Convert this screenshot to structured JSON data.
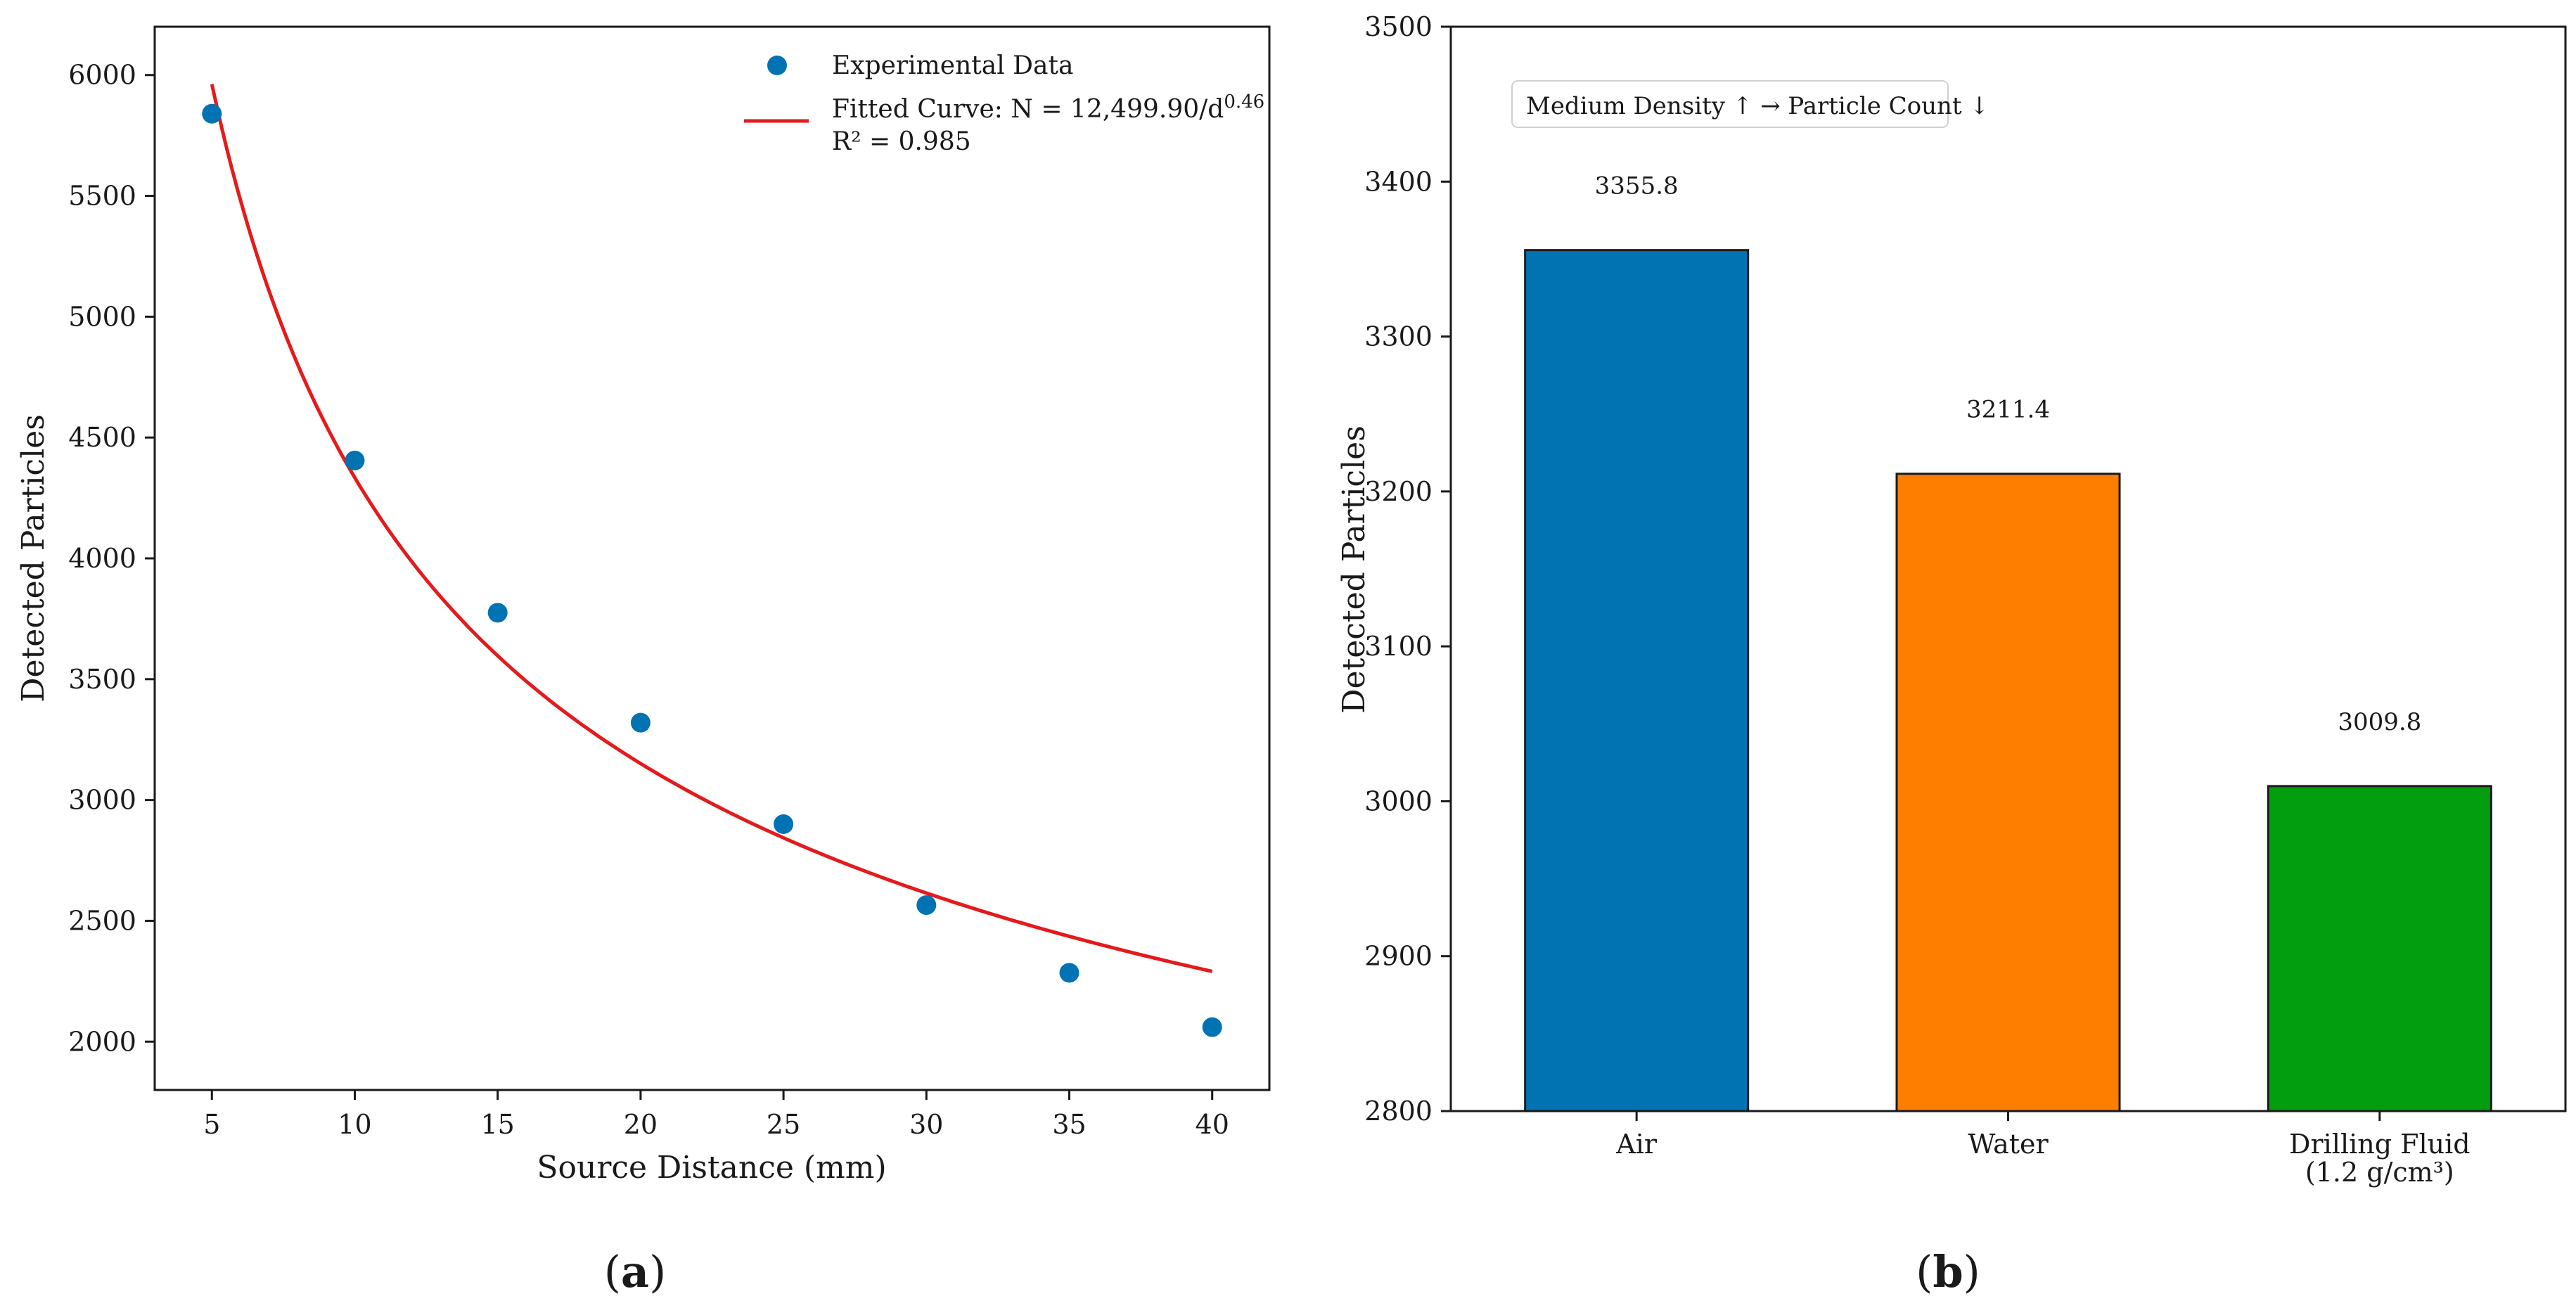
{
  "chart_data": [
    {
      "id": "a",
      "type": "scatter",
      "panel_label": "a",
      "xlabel": "Source Distance (mm)",
      "ylabel": "Detected Particles",
      "xlim": [
        3,
        42
      ],
      "ylim": [
        1800,
        6200
      ],
      "xticks": [
        "5",
        "10",
        "15",
        "20",
        "25",
        "30",
        "35",
        "40"
      ],
      "yticks": [
        "2000",
        "2500",
        "3000",
        "3500",
        "4000",
        "4500",
        "5000",
        "5500",
        "6000"
      ],
      "series": [
        {
          "name": "Experimental Data",
          "kind": "scatter",
          "color": "#0173b2",
          "x": [
            5,
            10,
            15,
            20,
            25,
            30,
            35,
            40
          ],
          "y": [
            5840,
            4405,
            3775,
            3320,
            2900,
            2565,
            2285,
            2060
          ]
        },
        {
          "name": "Fitted Curve",
          "kind": "line",
          "color": "#e41a1c",
          "formula": "N = 12499.9 / d^0.46",
          "coefficient": 12499.9,
          "exponent": 0.46,
          "x_range": [
            5,
            40
          ]
        }
      ],
      "legend": {
        "position": "top-right",
        "scatter_label": "Experimental Data",
        "fit_label_main": "Fitted Curve: N = 12,499.90/d",
        "fit_label_exp": "0.46",
        "fit_label_r2": "R² = 0.985"
      }
    },
    {
      "id": "b",
      "type": "bar",
      "panel_label": "b",
      "xlabel": "",
      "ylabel": "Detected Particles",
      "ylim": [
        2800,
        3500
      ],
      "yticks": [
        "2800",
        "2900",
        "3000",
        "3100",
        "3200",
        "3300",
        "3400",
        "3500"
      ],
      "categories": [
        {
          "line1": "Air",
          "line2": ""
        },
        {
          "line1": "Water",
          "line2": ""
        },
        {
          "line1": "Drilling Fluid",
          "line2": "(1.2 g/cm³)"
        }
      ],
      "values": [
        3355.8,
        3211.4,
        3009.8
      ],
      "value_labels": [
        "3355.8",
        "3211.4",
        "3009.8"
      ],
      "colors": [
        "#0173b2",
        "#fe7f00",
        "#029e0f"
      ],
      "annotation": "Medium Density ↑ → Particle Count ↓"
    }
  ]
}
